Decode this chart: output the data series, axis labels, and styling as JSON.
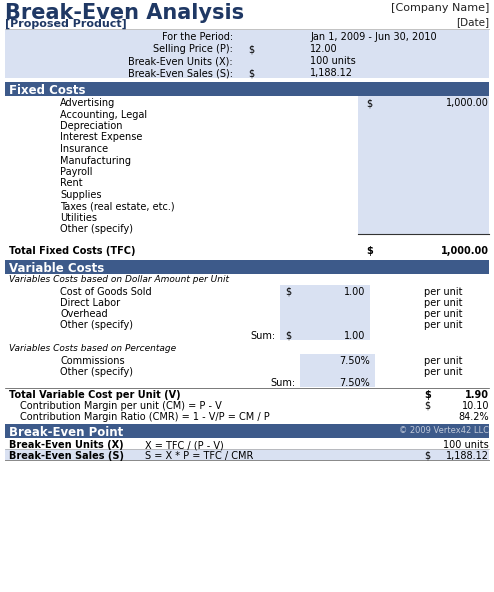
{
  "title": "Break-Even Analysis",
  "subtitle": "[Proposed Product]",
  "company": "[Company Name]",
  "date_label": "[Date]",
  "period_label": "For the Period:",
  "period_value": "Jan 1, 2009 - Jun 30, 2010",
  "selling_price_label": "Selling Price (P):",
  "selling_price_dollar": "$",
  "selling_price_value": "12.00",
  "beu_label": "Break-Even Units (X):",
  "beu_value": "100 units",
  "bes_label": "Break-Even Sales (S):",
  "bes_dollar": "$",
  "bes_value": "1,188.12",
  "section_header_bg": "#3D5A8A",
  "section_header_color": "#FFFFFF",
  "light_blue_bg": "#D9E1F2",
  "white_bg": "#FFFFFF",
  "border_color": "#3D5A8A",
  "fixed_costs_header": "Fixed Costs",
  "fixed_cost_items": [
    "Advertising",
    "Accounting, Legal",
    "Depreciation",
    "Interest Expense",
    "Insurance",
    "Manufacturing",
    "Payroll",
    "Rent",
    "Supplies",
    "Taxes (real estate, etc.)",
    "Utilities",
    "Other (specify)"
  ],
  "advertising_dollar": "$",
  "advertising_value": "1,000.00",
  "total_fixed_label": "Total Fixed Costs (TFC)",
  "total_fixed_dollar": "$",
  "total_fixed_value": "1,000.00",
  "variable_costs_header": "Variable Costs",
  "var_sub1": "Variables Costs based on Dollar Amount per Unit",
  "var_dollar_items": [
    "Cost of Goods Sold",
    "Direct Labor",
    "Overhead",
    "Other (specify)"
  ],
  "cogs_dollar": "$",
  "cogs_value": "1.00",
  "var_sum_label": "Sum:",
  "var_sum_dollar": "$",
  "var_sum_value": "1.00",
  "var_sub2": "Variables Costs based on Percentage",
  "var_pct_items": [
    "Commissions",
    "Other (specify)"
  ],
  "commissions_pct": "7.50%",
  "var_pct_sum_label": "Sum:",
  "var_pct_sum_value": "7.50%",
  "total_var_label": "Total Variable Cost per Unit (V)",
  "total_var_dollar": "$",
  "total_var_value": "1.90",
  "cm_label": "Contribution Margin per unit (CM) = P - V",
  "cm_dollar": "$",
  "cm_value": "10.10",
  "cmr_label": "Contribution Margin Ratio (CMR) = 1 - V/P = CM / P",
  "cmr_value": "84.2%",
  "bep_header": "Break-Even Point",
  "copyright": "© 2009 Vertex42 LLC",
  "beu_row_label": "Break-Even Units (X)",
  "beu_formula": "X = TFC / (P - V)",
  "beu_result": "100 units",
  "bes_row_label": "Break-Even Sales (S)",
  "bes_formula": "S = X * P = TFC / CMR",
  "bes_result_dollar": "$",
  "bes_result": "1,188.12",
  "title_color": "#1F3864",
  "body_fontsize": 7.0,
  "header_fontsize": 8.5,
  "title_fontsize": 15
}
